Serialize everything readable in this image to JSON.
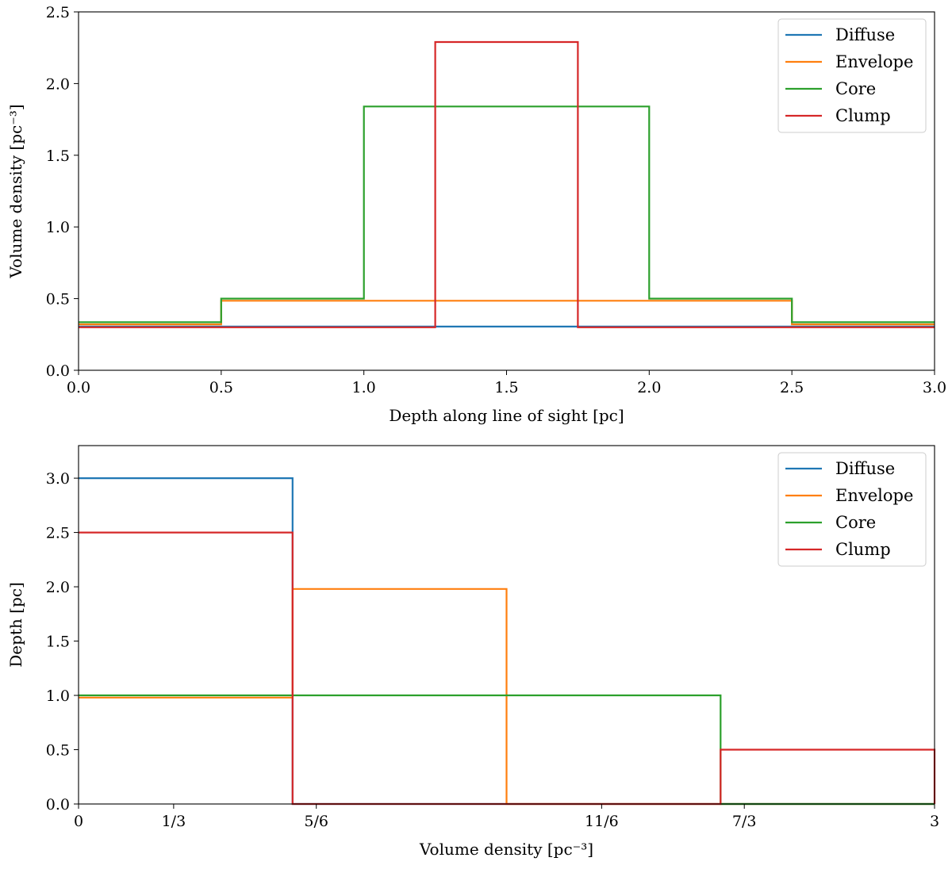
{
  "chart_data": [
    {
      "type": "line",
      "step": true,
      "xlabel": "Depth along line of sight [pc]",
      "ylabel": "Volume density [pc⁻³]",
      "xlim": [
        0,
        3
      ],
      "ylim": [
        0,
        2.5
      ],
      "xticks": [
        0,
        0.5,
        1,
        1.5,
        2,
        2.5,
        3
      ],
      "xtick_labels": [
        "0.0",
        "0.5",
        "1.0",
        "1.5",
        "2.0",
        "2.5",
        "3.0"
      ],
      "yticks": [
        0,
        0.5,
        1,
        1.5,
        2,
        2.5
      ],
      "ytick_labels": [
        "0.0",
        "0.5",
        "1.0",
        "1.5",
        "2.0",
        "2.5"
      ],
      "legend_position": "top-right",
      "series": [
        {
          "name": "Diffuse",
          "color": "#1f77b4",
          "x": [
            0,
            3
          ],
          "y": [
            0.305,
            0.305
          ]
        },
        {
          "name": "Envelope",
          "color": "#ff7f0e",
          "x": [
            0,
            0.5,
            0.5,
            2.5,
            2.5,
            3
          ],
          "y": [
            0.32,
            0.32,
            0.485,
            0.485,
            0.32,
            0.32
          ]
        },
        {
          "name": "Core",
          "color": "#2ca02c",
          "x": [
            0,
            0.5,
            0.5,
            1,
            1,
            2,
            2,
            2.5,
            2.5,
            3
          ],
          "y": [
            0.335,
            0.335,
            0.5,
            0.5,
            1.84,
            1.84,
            0.5,
            0.5,
            0.335,
            0.335
          ]
        },
        {
          "name": "Clump",
          "color": "#d62728",
          "x": [
            0,
            1.25,
            1.25,
            1.75,
            1.75,
            3
          ],
          "y": [
            0.3,
            0.3,
            2.29,
            2.29,
            0.3,
            0.3
          ]
        }
      ]
    },
    {
      "type": "line",
      "step": true,
      "xlabel": "Volume density [pc⁻³]",
      "ylabel": "Depth [pc]",
      "xlim": [
        0,
        3
      ],
      "ylim": [
        0,
        3.3
      ],
      "xticks": [
        0,
        0.3333,
        0.8333,
        1.8333,
        2.3333,
        3
      ],
      "xtick_labels": [
        "0",
        "1/3",
        "5/6",
        "11/6",
        "7/3",
        "3"
      ],
      "yticks": [
        0,
        0.5,
        1,
        1.5,
        2,
        2.5,
        3
      ],
      "ytick_labels": [
        "0.0",
        "0.5",
        "1.0",
        "1.5",
        "2.0",
        "2.5",
        "3.0"
      ],
      "legend_position": "top-right",
      "series": [
        {
          "name": "Diffuse",
          "color": "#1f77b4",
          "x": [
            0,
            0.75,
            0.75,
            3
          ],
          "y": [
            3.0,
            3.0,
            0,
            0
          ]
        },
        {
          "name": "Envelope",
          "color": "#ff7f0e",
          "x": [
            0,
            0.75,
            0.75,
            1.5,
            1.5,
            3
          ],
          "y": [
            0.98,
            0.98,
            1.98,
            1.98,
            0,
            0
          ]
        },
        {
          "name": "Core",
          "color": "#2ca02c",
          "x": [
            0,
            2.25,
            2.25,
            3
          ],
          "y": [
            1.0,
            1.0,
            0,
            0
          ]
        },
        {
          "name": "Clump",
          "color": "#d62728",
          "x": [
            0,
            0.75,
            0.75,
            2.25,
            2.25,
            3,
            3
          ],
          "y": [
            2.5,
            2.5,
            0,
            0,
            0.5,
            0.5,
            0
          ]
        }
      ]
    }
  ]
}
